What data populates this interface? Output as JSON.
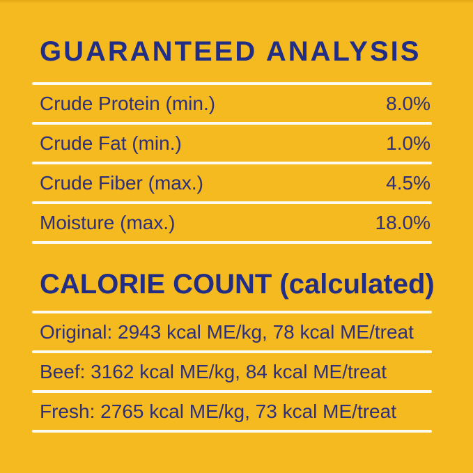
{
  "label": {
    "background_color": "#F5BA20",
    "heading_color": "#222D86",
    "text_color": "#2D2F7B",
    "divider_color": "#FDFBF0"
  },
  "guaranteed_analysis": {
    "title": "GUARANTEED ANALYSIS",
    "rows": [
      {
        "label": "Crude Protein (min.)",
        "value": "8.0%"
      },
      {
        "label": "Crude Fat (min.)",
        "value": "1.0%"
      },
      {
        "label": "Crude Fiber (max.)",
        "value": "4.5%"
      },
      {
        "label": "Moisture (max.)",
        "value": "18.0%"
      }
    ]
  },
  "calorie_count": {
    "title": "CALORIE COUNT (calculated)",
    "rows": [
      {
        "text": "Original: 2943 kcal ME/kg, 78 kcal ME/treat"
      },
      {
        "text": "Beef: 3162 kcal ME/kg, 84 kcal ME/treat"
      },
      {
        "text": "Fresh: 2765 kcal ME/kg, 73 kcal ME/treat"
      }
    ]
  }
}
